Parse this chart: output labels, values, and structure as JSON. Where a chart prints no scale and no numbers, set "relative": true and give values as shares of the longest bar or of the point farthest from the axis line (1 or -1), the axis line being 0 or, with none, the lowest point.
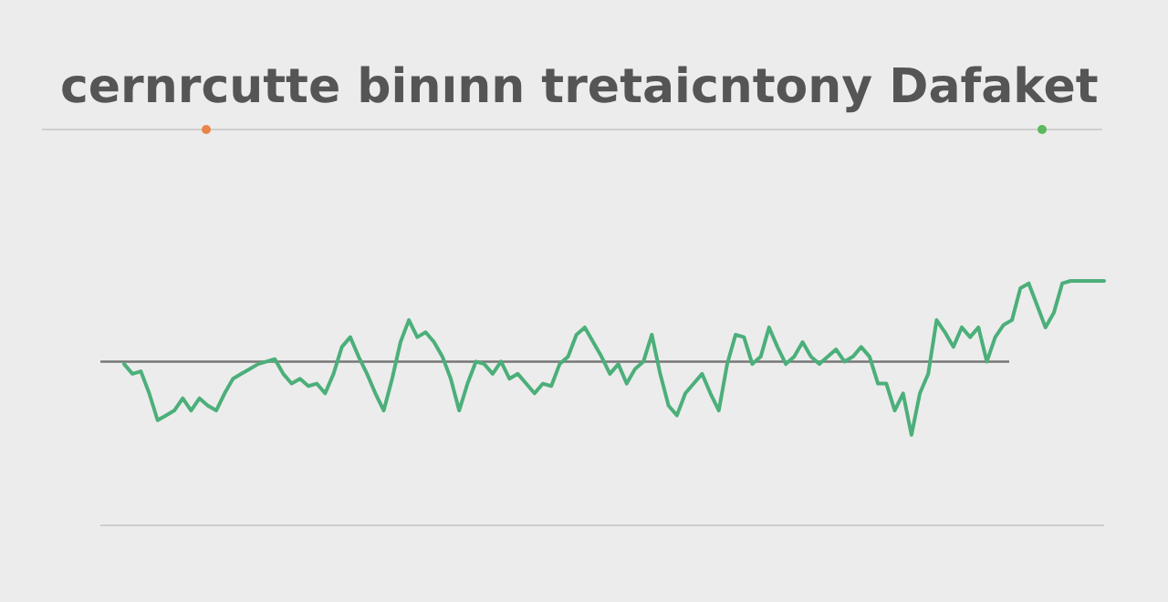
{
  "chart_data": {
    "type": "line",
    "title": "cernrcutte binınn tretaicntony Dafaket",
    "relative": true,
    "marker": "none",
    "line_style": "solid",
    "categories": [
      null,
      null,
      null,
      null,
      null,
      null,
      null,
      null,
      null,
      null,
      null,
      null,
      null,
      null,
      null,
      null,
      null,
      null,
      null,
      null,
      null,
      null,
      null,
      null,
      null,
      null,
      null,
      null,
      null,
      null,
      null,
      null,
      null,
      null,
      null,
      null,
      null,
      null,
      null,
      null,
      null,
      null,
      null,
      null,
      null,
      null,
      null,
      null,
      null,
      null,
      null,
      null,
      null,
      null,
      null,
      null,
      null,
      null,
      null,
      null,
      null,
      null,
      null,
      null,
      null,
      null,
      null,
      null,
      null,
      null,
      null,
      null,
      null,
      null,
      null,
      null,
      null,
      null,
      null,
      null,
      null,
      null,
      null,
      null,
      null,
      null,
      null,
      null,
      null,
      null,
      null,
      null,
      null,
      null,
      null,
      null,
      null,
      null,
      null,
      null,
      null,
      null,
      null,
      null,
      null,
      null,
      null,
      null,
      null,
      null,
      null,
      null,
      null,
      null,
      null,
      null,
      null,
      null
    ],
    "series": [
      {
        "color": "#4caf7a",
        "values": [
          0.66,
          0.62,
          0.63,
          0.54,
          0.43,
          0.45,
          0.47,
          0.52,
          0.47,
          0.52,
          0.49,
          0.47,
          0.54,
          0.6,
          0.62,
          0.64,
          0.66,
          0.67,
          0.68,
          0.62,
          0.58,
          0.6,
          0.57,
          0.58,
          0.54,
          0.62,
          0.73,
          0.77,
          0.69,
          0.62,
          0.54,
          0.47,
          0.6,
          0.75,
          0.84,
          0.77,
          0.79,
          0.75,
          0.69,
          0.6,
          0.47,
          0.58,
          0.67,
          0.66,
          0.62,
          0.67,
          0.6,
          0.62,
          0.58,
          0.54,
          0.58,
          0.57,
          0.66,
          0.69,
          0.78,
          0.81,
          0.75,
          0.69,
          0.62,
          0.66,
          0.58,
          0.64,
          0.67,
          0.78,
          0.62,
          0.49,
          0.45,
          0.54,
          0.58,
          0.62,
          0.54,
          0.47,
          0.66,
          0.78,
          0.77,
          0.66,
          0.69,
          0.81,
          0.73,
          0.66,
          0.69,
          0.75,
          0.69,
          0.66,
          0.69,
          0.72,
          0.67,
          0.69,
          0.73,
          0.69,
          0.58,
          0.58,
          0.47,
          0.54,
          0.37,
          0.54,
          0.62,
          0.84,
          0.79,
          0.73,
          0.81,
          0.77,
          0.81,
          0.67,
          0.77,
          0.82,
          0.84,
          0.97,
          0.99,
          0.9,
          0.81,
          0.87,
          0.99,
          1,
          1,
          1,
          1,
          1
        ]
      }
    ],
    "ref_lines": [
      {
        "axis": "y",
        "value": 0.67,
        "color": "#777777"
      }
    ]
  }
}
